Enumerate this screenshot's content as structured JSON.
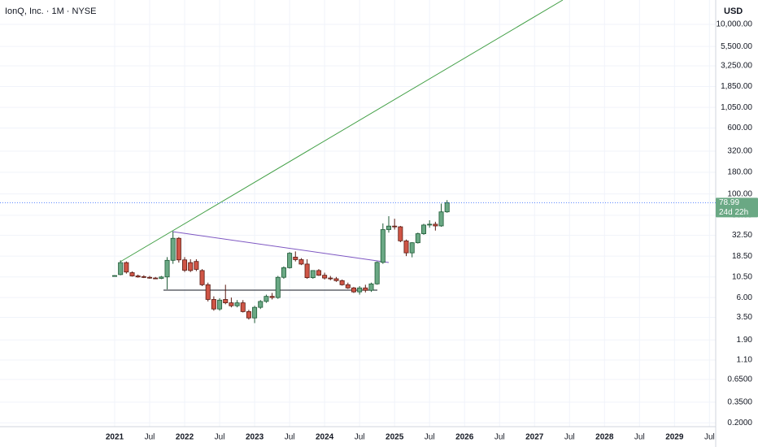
{
  "chart_data": {
    "type": "candlestick",
    "title": "IonQ, Inc. · 1M · NYSE",
    "currency": "USD",
    "x": [
      "2021-01",
      "2021-02",
      "2021-03",
      "2021-04",
      "2021-05",
      "2021-06",
      "2021-07",
      "2021-08",
      "2021-09",
      "2021-10",
      "2021-11",
      "2021-12",
      "2022-01",
      "2022-02",
      "2022-03",
      "2022-04",
      "2022-05",
      "2022-06",
      "2022-07",
      "2022-08",
      "2022-09",
      "2022-10",
      "2022-11",
      "2022-12",
      "2023-01",
      "2023-02",
      "2023-03",
      "2023-04",
      "2023-05",
      "2023-06",
      "2023-07",
      "2023-08",
      "2023-09",
      "2023-10",
      "2023-11",
      "2023-12",
      "2024-01",
      "2024-02",
      "2024-03",
      "2024-04",
      "2024-05",
      "2024-06",
      "2024-07",
      "2024-08",
      "2024-09",
      "2024-10",
      "2024-11",
      "2024-12",
      "2025-01",
      "2025-02",
      "2025-03",
      "2025-04",
      "2025-05",
      "2025-06",
      "2025-07",
      "2025-08",
      "2025-09",
      "2025-10"
    ],
    "open": [
      10.8,
      11.2,
      15.5,
      11.8,
      10.8,
      10.6,
      10.4,
      10.2,
      10.1,
      10.5,
      16.5,
      30,
      16.7,
      15.5,
      16,
      12.5,
      8.5,
      5.7,
      4.4,
      5.7,
      5.2,
      4.8,
      5.2,
      4.1,
      3.45,
      4.6,
      5.4,
      6.2,
      6,
      10.4,
      13.5,
      18,
      16.8,
      14.9,
      10.3,
      12.5,
      11,
      10.2,
      10,
      9.5,
      8.5,
      7.8,
      7,
      7.8,
      7.3,
      8.7,
      15.6,
      38,
      41.8,
      41,
      28,
      20.2,
      26.6,
      34,
      43,
      44,
      42,
      61.5
    ],
    "high": [
      11,
      16.5,
      16,
      12.2,
      11.2,
      11,
      10.8,
      10.5,
      10.8,
      18,
      35.9,
      31,
      18,
      17,
      17,
      13,
      9,
      6.2,
      5.9,
      8.5,
      6,
      5.6,
      5.6,
      4.3,
      4.8,
      5.6,
      6.5,
      6.8,
      10.8,
      14,
      20.6,
      21,
      17.5,
      17,
      12.5,
      13,
      11.8,
      10.8,
      10.5,
      9.8,
      9,
      8,
      8.2,
      8.5,
      9,
      16,
      45,
      54.7,
      51,
      42,
      29,
      27,
      35,
      44.5,
      49,
      47,
      77,
      84.6
    ],
    "low": [
      10.6,
      11,
      11.5,
      10.6,
      10.3,
      10.2,
      10,
      10,
      9.9,
      7.5,
      15,
      15.5,
      12,
      12,
      12.3,
      8.2,
      5.4,
      4.2,
      4.2,
      5,
      4.6,
      4.6,
      4,
      3.3,
      3,
      4.4,
      5.2,
      5.7,
      5.8,
      10,
      13.2,
      16,
      14.5,
      10,
      10,
      10.8,
      9.8,
      9.6,
      9.2,
      8.3,
      7.6,
      6.8,
      6.5,
      6.9,
      7,
      8.5,
      15,
      35,
      38,
      27,
      18.5,
      17.9,
      26,
      33,
      40,
      37,
      41,
      60
    ],
    "close": [
      10.9,
      15.5,
      12,
      10.8,
      10.5,
      10.4,
      10.2,
      10.1,
      10.5,
      16.5,
      30,
      16.7,
      12.6,
      12.5,
      12.9,
      8.5,
      5.7,
      4.4,
      5.6,
      5.2,
      4.8,
      5.2,
      4.1,
      3.45,
      4.6,
      5.4,
      6.2,
      6,
      10.4,
      13.5,
      20,
      16.8,
      14.9,
      10.3,
      12.5,
      11,
      10.2,
      10,
      9.5,
      8.5,
      7.8,
      7,
      7.8,
      7.3,
      8.7,
      15.6,
      38,
      41.8,
      41,
      28,
      20.2,
      26.6,
      34,
      43,
      44,
      42,
      61.5,
      78.99
    ],
    "up_color": "#6aa884",
    "down_color": "#cf5546",
    "log_scale": true,
    "grid": true,
    "ylim": [
      0.18,
      19400
    ],
    "yticks": [
      {
        "value": 10000,
        "label": "10,000.00"
      },
      {
        "value": 5500,
        "label": "5,500.00"
      },
      {
        "value": 3250,
        "label": "3,250.00"
      },
      {
        "value": 1850,
        "label": "1,850.00"
      },
      {
        "value": 1050,
        "label": "1,050.00"
      },
      {
        "value": 600,
        "label": "600.00"
      },
      {
        "value": 320,
        "label": "320.00"
      },
      {
        "value": 180,
        "label": "180.00"
      },
      {
        "value": 100,
        "label": "100.00"
      },
      {
        "value": 56,
        "label": "56.00"
      },
      {
        "value": 32.5,
        "label": "32.50"
      },
      {
        "value": 18.5,
        "label": "18.50"
      },
      {
        "value": 10.5,
        "label": "10.50"
      },
      {
        "value": 6,
        "label": "6.00"
      },
      {
        "value": 3.5,
        "label": "3.50"
      },
      {
        "value": 1.9,
        "label": "1.90"
      },
      {
        "value": 1.1,
        "label": "1.10"
      },
      {
        "value": 0.65,
        "label": "0.6500"
      },
      {
        "value": 0.35,
        "label": "0.3500"
      },
      {
        "value": 0.2,
        "label": "0.2000"
      }
    ],
    "xticks": [
      {
        "value": "2021-01",
        "label": "2021"
      },
      {
        "value": "2021-07",
        "label": "Jul"
      },
      {
        "value": "2022-01",
        "label": "2022"
      },
      {
        "value": "2022-07",
        "label": "Jul"
      },
      {
        "value": "2023-01",
        "label": "2023"
      },
      {
        "value": "2023-07",
        "label": "Jul"
      },
      {
        "value": "2024-01",
        "label": "2024"
      },
      {
        "value": "2024-07",
        "label": "Jul"
      },
      {
        "value": "2025-01",
        "label": "2025"
      },
      {
        "value": "2025-07",
        "label": "Jul"
      },
      {
        "value": "2026-01",
        "label": "2026"
      },
      {
        "value": "2026-07",
        "label": "Jul"
      },
      {
        "value": "2027-01",
        "label": "2027"
      },
      {
        "value": "2027-07",
        "label": "Jul"
      },
      {
        "value": "2028-01",
        "label": "2028"
      },
      {
        "value": "2028-07",
        "label": "Jul"
      },
      {
        "value": "2029-01",
        "label": "2029"
      },
      {
        "value": "2029-07",
        "label": "Jul"
      }
    ],
    "last_price": 78.99,
    "countdown": "24d 22h"
  }
}
